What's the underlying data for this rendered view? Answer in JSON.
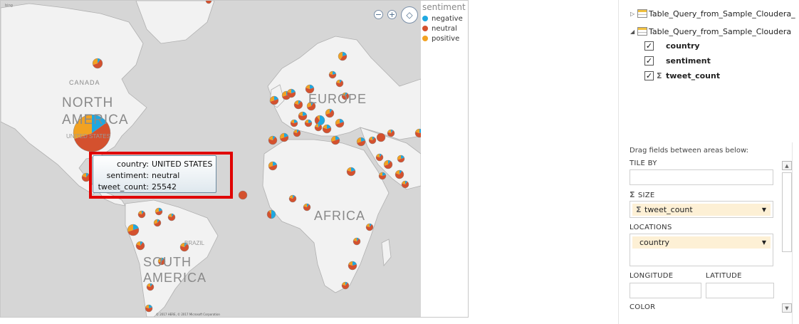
{
  "map": {
    "region_labels": {
      "north_america": "NORTH AMERICA",
      "south_america": "SOUTH AMERICA",
      "europe": "EUROPE",
      "africa": "AFRICA",
      "canada": "CANADA",
      "brazil": "BRAZIL",
      "united_states": "UNITED STATES"
    },
    "copyright": "© 2017 HERE, © 2017 Microsoft Corporation",
    "bing_logo": "bing",
    "controls": {
      "zoom_out": "−",
      "zoom_in": "+",
      "navigate": "◇"
    }
  },
  "legend": {
    "title": "sentiment",
    "items": [
      {
        "label": "negative",
        "color": "#1fa8e0"
      },
      {
        "label": "neutral",
        "color": "#d4512e"
      },
      {
        "label": "positive",
        "color": "#f2a222"
      }
    ]
  },
  "tooltip": {
    "rows": [
      {
        "key": "country:",
        "value": "UNITED STATES"
      },
      {
        "key": "sentiment:",
        "value": "neutral"
      },
      {
        "key": "tweet_count:",
        "value": "25542"
      }
    ]
  },
  "field_list": {
    "tables": [
      {
        "name": "Table_Query_from_Sample_Cloudera_",
        "expanded": false
      },
      {
        "name": "Table_Query_from_Sample_Cloudera",
        "expanded": true
      }
    ],
    "fields": [
      {
        "name": "country",
        "checked": true,
        "sigma": false
      },
      {
        "name": "sentiment",
        "checked": true,
        "sigma": false
      },
      {
        "name": "tweet_count",
        "checked": true,
        "sigma": true
      }
    ]
  },
  "areas": {
    "instructions": "Drag fields between areas below:",
    "tile_by": {
      "label": "TILE BY"
    },
    "size": {
      "label": "SIZE",
      "value": "tweet_count"
    },
    "locations": {
      "label": "LOCATIONS",
      "value": "country"
    },
    "longitude": {
      "label": "LONGITUDE"
    },
    "latitude": {
      "label": "LATITUDE"
    },
    "color": {
      "label": "COLOR"
    }
  },
  "colors": {
    "negative": "#1fa8e0",
    "neutral": "#d4512e",
    "positive": "#f2a222"
  }
}
